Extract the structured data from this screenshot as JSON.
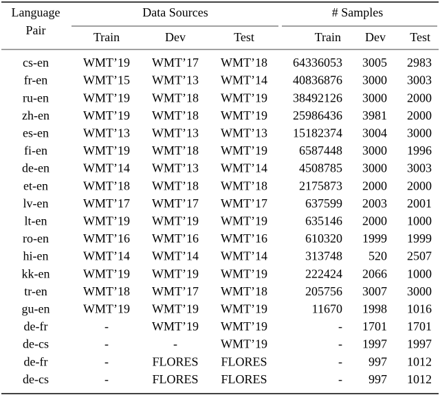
{
  "table": {
    "header": {
      "language_pair": [
        "Language",
        "Pair"
      ],
      "data_sources": "Data Sources",
      "samples": "# Samples",
      "columns": [
        "Train",
        "Dev",
        "Test",
        "Train",
        "Dev",
        "Test"
      ]
    },
    "rows": [
      [
        "cs-en",
        "WMT’19",
        "WMT’17",
        "WMT’18",
        64336053,
        3005,
        2983
      ],
      [
        "fr-en",
        "WMT’15",
        "WMT’13",
        "WMT’14",
        40836876,
        3000,
        3003
      ],
      [
        "ru-en",
        "WMT’19",
        "WMT’18",
        "WMT’19",
        38492126,
        3000,
        2000
      ],
      [
        "zh-en",
        "WMT’19",
        "WMT’18",
        "WMT’19",
        25986436,
        3981,
        2000
      ],
      [
        "es-en",
        "WMT’13",
        "WMT’13",
        "WMT’13",
        15182374,
        3004,
        3000
      ],
      [
        "fi-en",
        "WMT’19",
        "WMT’18",
        "WMT’19",
        6587448,
        3000,
        1996
      ],
      [
        "de-en",
        "WMT’14",
        "WMT’13",
        "WMT’14",
        4508785,
        3000,
        3003
      ],
      [
        "et-en",
        "WMT’18",
        "WMT’18",
        "WMT’18",
        2175873,
        2000,
        2000
      ],
      [
        "lv-en",
        "WMT’17",
        "WMT’17",
        "WMT’17",
        637599,
        2003,
        2001
      ],
      [
        "lt-en",
        "WMT’19",
        "WMT’19",
        "WMT’19",
        635146,
        2000,
        1000
      ],
      [
        "ro-en",
        "WMT’16",
        "WMT’16",
        "WMT’16",
        610320,
        1999,
        1999
      ],
      [
        "hi-en",
        "WMT’14",
        "WMT’14",
        "WMT’14",
        313748,
        520,
        2507
      ],
      [
        "kk-en",
        "WMT’19",
        "WMT’19",
        "WMT’19",
        222424,
        2066,
        1000
      ],
      [
        "tr-en",
        "WMT’18",
        "WMT’17",
        "WMT’18",
        205756,
        3007,
        3000
      ],
      [
        "gu-en",
        "WMT’19",
        "WMT’19",
        "WMT’19",
        11670,
        1998,
        1016
      ],
      [
        "de-fr",
        "-",
        "WMT’19",
        "WMT’19",
        "-",
        1701,
        1701
      ],
      [
        "de-cs",
        "-",
        "-",
        "WMT’19",
        "-",
        1997,
        1997
      ],
      [
        "de-fr",
        "-",
        "FLORES",
        "FLORES",
        "-",
        997,
        1012
      ],
      [
        "de-cs",
        "-",
        "FLORES",
        "FLORES",
        "-",
        997,
        1012
      ]
    ]
  }
}
